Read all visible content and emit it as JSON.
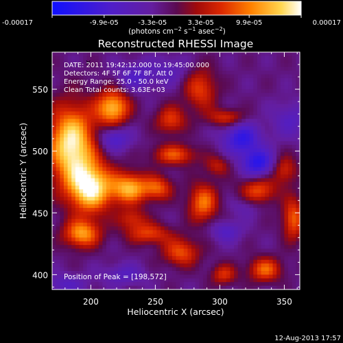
{
  "chart_data": {
    "type": "heatmap",
    "title": "Reconstructed RHESSI Image",
    "xlabel": "Heliocentric X (arcsec)",
    "ylabel": "Heliocentric Y (arcsec)",
    "xlim": [
      170,
      362
    ],
    "ylim": [
      388,
      580
    ],
    "x_ticks": [
      "200",
      "250",
      "300",
      "350"
    ],
    "x_tick_values": [
      200,
      250,
      300,
      350
    ],
    "y_ticks": [
      "400",
      "450",
      "500",
      "550"
    ],
    "y_tick_values": [
      400,
      450,
      500,
      550
    ],
    "colorbar": {
      "range": [
        -0.00017,
        0.00017
      ],
      "tick_labels": [
        "-0.00017",
        "-9.9e-05",
        "-3.3e-05",
        "3.3e-05",
        "9.9e-05",
        "0.00017"
      ],
      "tick_values": [
        -0.00017,
        -9.9e-05,
        -3.3e-05,
        3.3e-05,
        9.9e-05,
        0.00017
      ],
      "colors": [
        "#1010ff",
        "#6a1ea8",
        "#5a0a50",
        "#c81800",
        "#ff8000",
        "#ffcc40",
        "#ffffff"
      ]
    },
    "annotations": [
      "DATE: 2011 19:42:12.000 to 19:45:00.000",
      "Detectors: 4F 5F 6F 7F 8F, Att 0",
      "Energy Range: 25.0 - 50.0 keV",
      "Clean     Total counts: 3.63E+03"
    ],
    "peak_text": "Position of Peak = [198,572]",
    "peak": [
      198,
      572
    ],
    "timestamp": "12-Aug-2013 17:57",
    "sources": [
      {
        "x": 185,
        "y": 505,
        "sx": 13,
        "sy": 22,
        "a": 1.05
      },
      {
        "x": 200,
        "y": 470,
        "sx": 12,
        "sy": 14,
        "a": 1.0
      },
      {
        "x": 217,
        "y": 535,
        "sx": 9,
        "sy": 10,
        "a": 0.85
      },
      {
        "x": 230,
        "y": 470,
        "sx": 10,
        "sy": 9,
        "a": 0.8
      },
      {
        "x": 193,
        "y": 433,
        "sx": 10,
        "sy": 8,
        "a": 0.75
      },
      {
        "x": 252,
        "y": 470,
        "sx": 8,
        "sy": 7,
        "a": 0.55
      },
      {
        "x": 287,
        "y": 458,
        "sx": 8,
        "sy": 11,
        "a": 0.65
      },
      {
        "x": 265,
        "y": 497,
        "sx": 12,
        "sy": 6,
        "a": 0.55
      },
      {
        "x": 262,
        "y": 525,
        "sx": 8,
        "sy": 8,
        "a": 0.5
      },
      {
        "x": 285,
        "y": 550,
        "sx": 9,
        "sy": 12,
        "a": 0.5
      },
      {
        "x": 305,
        "y": 527,
        "sx": 10,
        "sy": 5,
        "a": 0.45
      },
      {
        "x": 270,
        "y": 418,
        "sx": 10,
        "sy": 8,
        "a": 0.55
      },
      {
        "x": 245,
        "y": 433,
        "sx": 12,
        "sy": 6,
        "a": 0.5
      },
      {
        "x": 330,
        "y": 468,
        "sx": 10,
        "sy": 8,
        "a": 0.55
      },
      {
        "x": 357,
        "y": 445,
        "sx": 6,
        "sy": 12,
        "a": 0.6
      },
      {
        "x": 350,
        "y": 485,
        "sx": 7,
        "sy": 8,
        "a": 0.45
      },
      {
        "x": 335,
        "y": 404,
        "sx": 9,
        "sy": 7,
        "a": 0.6
      },
      {
        "x": 303,
        "y": 400,
        "sx": 7,
        "sy": 6,
        "a": 0.45
      },
      {
        "x": 232,
        "y": 445,
        "sx": 8,
        "sy": 6,
        "a": 0.4
      },
      {
        "x": 298,
        "y": 488,
        "sx": 7,
        "sy": 6,
        "a": 0.35
      },
      {
        "x": 226,
        "y": 400,
        "sx": 11,
        "sy": 6,
        "a": -0.3
      },
      {
        "x": 218,
        "y": 510,
        "sx": 9,
        "sy": 7,
        "a": -0.45
      },
      {
        "x": 317,
        "y": 510,
        "sx": 10,
        "sy": 9,
        "a": -0.6
      },
      {
        "x": 330,
        "y": 490,
        "sx": 9,
        "sy": 8,
        "a": -0.65
      },
      {
        "x": 235,
        "y": 560,
        "sx": 10,
        "sy": 8,
        "a": -0.35
      },
      {
        "x": 305,
        "y": 435,
        "sx": 8,
        "sy": 6,
        "a": -0.35
      },
      {
        "x": 355,
        "y": 525,
        "sx": 10,
        "sy": 10,
        "a": -0.3
      },
      {
        "x": 180,
        "y": 392,
        "sx": 12,
        "sy": 6,
        "a": -0.3
      },
      {
        "x": 262,
        "y": 565,
        "sx": 10,
        "sy": 8,
        "a": -0.25
      },
      {
        "x": 320,
        "y": 455,
        "sx": 8,
        "sy": 6,
        "a": -0.2
      }
    ]
  }
}
